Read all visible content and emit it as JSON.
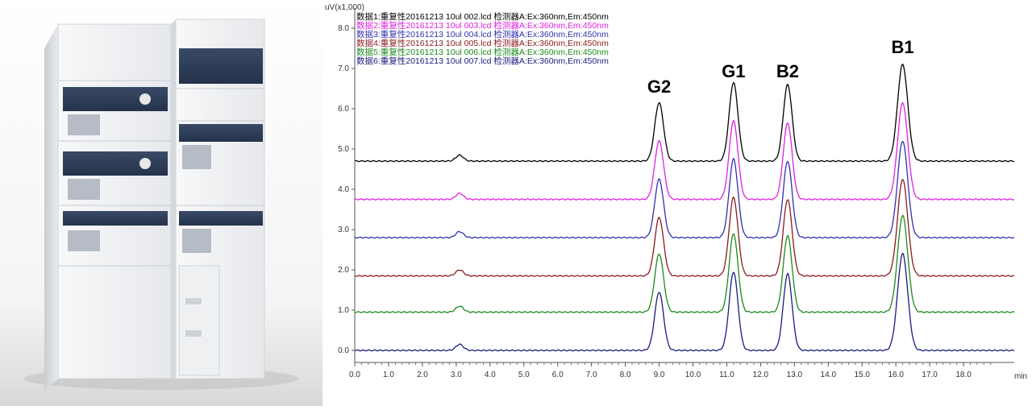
{
  "left_panel": {
    "image_name": "hplc-instrument-photo"
  },
  "chart_data": {
    "type": "line",
    "title": "",
    "ylabel": "uV(x1,000)",
    "xlabel": "min",
    "xlim": [
      0,
      19.5
    ],
    "ylim": [
      -0.3,
      8.5
    ],
    "x_ticks": [
      0.0,
      1.0,
      2.0,
      3.0,
      4.0,
      5.0,
      6.0,
      7.0,
      8.0,
      9.0,
      10.0,
      11.0,
      12.0,
      13.0,
      14.0,
      15.0,
      16.0,
      17.0,
      18.0
    ],
    "x_tick_labels": [
      "0.0",
      "1.0",
      "2.0",
      "3.0",
      "4.0",
      "5.0",
      "6.0",
      "7.0",
      "8.0",
      "9.0",
      "10.0",
      "11.0",
      "12.0",
      "13.0",
      "14.0",
      "15.0",
      "16.0",
      "17.0",
      "18.0"
    ],
    "y_ticks": [
      0.0,
      1.0,
      2.0,
      3.0,
      4.0,
      5.0,
      6.0,
      7.0,
      8.0
    ],
    "y_tick_labels": [
      "0.0",
      "1.0",
      "2.0",
      "3.0",
      "4.0",
      "5.0",
      "6.0",
      "7.0",
      "8.0"
    ],
    "grid": false,
    "legend_position": "top-left",
    "peaks": [
      {
        "name": "G2",
        "x": 9.0
      },
      {
        "name": "G1",
        "x": 11.2
      },
      {
        "name": "B2",
        "x": 12.8
      },
      {
        "name": "B1",
        "x": 16.2
      }
    ],
    "series": [
      {
        "name": "数据1:重复性20161213 10ul 002.lcd 检测器A:Ex:360nm,Em:450nm",
        "color": "#000000",
        "baseline": 4.7,
        "peak_heights": [
          0.15,
          1.45,
          1.95,
          1.9,
          2.4
        ]
      },
      {
        "name": "数据2:重复性20161213 10ul 003.lcd 检测器A:Ex:360nm,Em:450nm",
        "color": "#e020e0",
        "baseline": 3.75,
        "peak_heights": [
          0.15,
          1.45,
          1.95,
          1.9,
          2.4
        ]
      },
      {
        "name": "数据3:重复性20161213 10ul 004.lcd 检测器A:Ex:360nm,Em:450nm",
        "color": "#3030b0",
        "baseline": 2.8,
        "peak_heights": [
          0.15,
          1.45,
          1.95,
          1.9,
          2.4
        ]
      },
      {
        "name": "数据4:重复性20161213 10ul 005.lcd 检测器A:Ex:360nm,Em:450nm",
        "color": "#8b1a1a",
        "baseline": 1.85,
        "peak_heights": [
          0.15,
          1.45,
          1.95,
          1.9,
          2.4
        ]
      },
      {
        "name": "数据5:重复性20161213 10ul 006.lcd 检测器A:Ex:360nm,Em:450nm",
        "color": "#1a8a1a",
        "baseline": 0.95,
        "peak_heights": [
          0.15,
          1.45,
          1.95,
          1.9,
          2.4
        ]
      },
      {
        "name": "数据6:重复性20161213 10ul 007.lcd 检测器A:Ex:360nm,Em:450nm",
        "color": "#1a1a80",
        "baseline": 0.0,
        "peak_heights": [
          0.15,
          1.45,
          1.95,
          1.9,
          2.4
        ]
      }
    ],
    "peak_positions": [
      3.1,
      9.0,
      11.2,
      12.8,
      16.2
    ]
  }
}
